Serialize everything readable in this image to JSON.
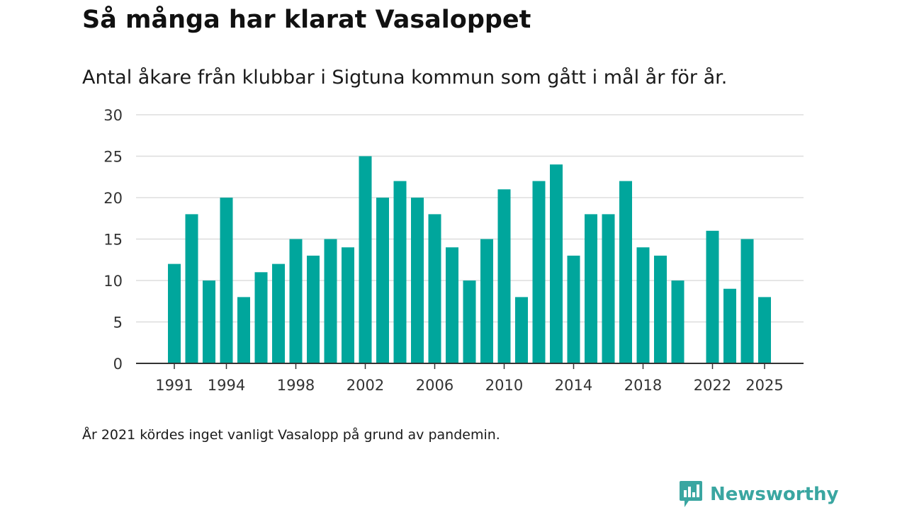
{
  "title": "Så många har klarat Vasaloppet",
  "subtitle": "Antal åkare från klubbar i Sigtuna kommun som gått i mål år för år.",
  "note": "År 2021 kördes inget vanligt Vasalopp på grund av pandemin.",
  "brand": {
    "name": "Newsworthy",
    "icon": "chart-speech-bubble-icon"
  },
  "colors": {
    "bar": "#00a69c",
    "grid": "#dddddd",
    "axis": "#333333",
    "brand": "#3aa6a1"
  },
  "chart_data": {
    "type": "bar",
    "title": "Så många har klarat Vasaloppet",
    "xlabel": "",
    "ylabel": "",
    "ylim": [
      0,
      30
    ],
    "yticks": [
      0,
      5,
      10,
      15,
      20,
      25,
      30
    ],
    "xtick_labels": [
      "1991",
      "1994",
      "1998",
      "2002",
      "2006",
      "2010",
      "2014",
      "2018",
      "2022",
      "2025"
    ],
    "categories": [
      "1991",
      "1992",
      "1993",
      "1994",
      "1995",
      "1996",
      "1997",
      "1998",
      "1999",
      "2000",
      "2001",
      "2002",
      "2003",
      "2004",
      "2005",
      "2006",
      "2007",
      "2008",
      "2009",
      "2010",
      "2011",
      "2012",
      "2013",
      "2014",
      "2015",
      "2016",
      "2017",
      "2018",
      "2019",
      "2020",
      "2021",
      "2022",
      "2023",
      "2024",
      "2025"
    ],
    "values": [
      12,
      18,
      10,
      20,
      8,
      11,
      12,
      15,
      13,
      15,
      14,
      25,
      20,
      22,
      20,
      18,
      14,
      10,
      15,
      21,
      8,
      22,
      24,
      13,
      18,
      18,
      22,
      14,
      13,
      10,
      null,
      16,
      9,
      15,
      8
    ]
  }
}
